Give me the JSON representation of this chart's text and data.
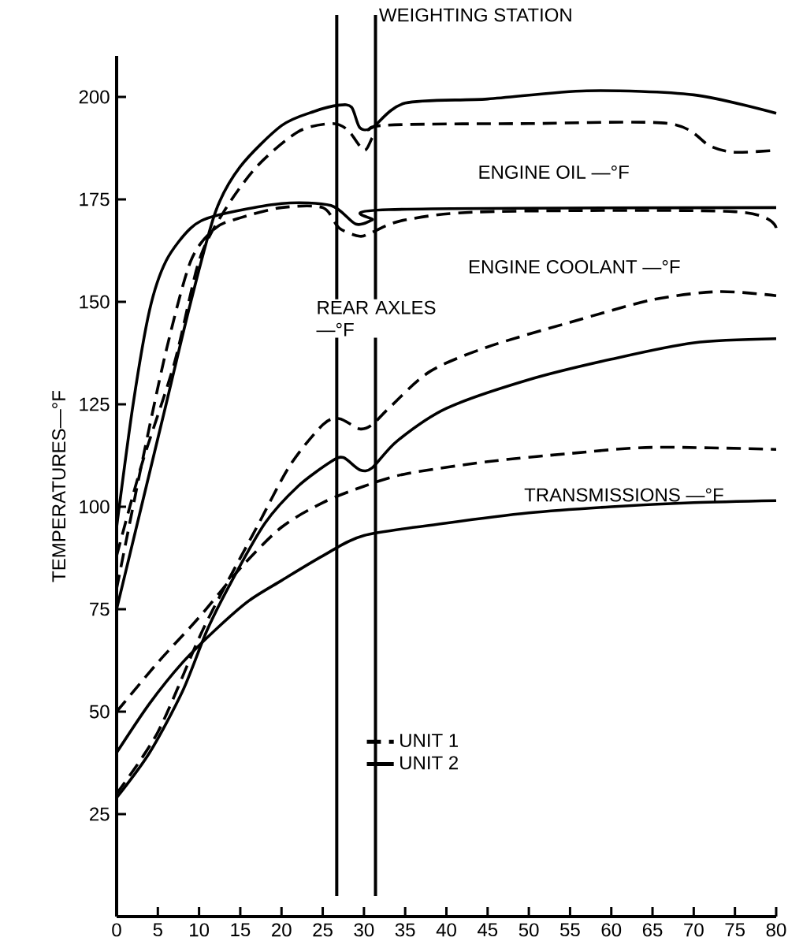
{
  "chart_data": {
    "type": "line",
    "ylabel": "TEMPERATURES—°F",
    "xlim": [
      0,
      80
    ],
    "ylim": [
      0,
      210
    ],
    "xticks": [
      0,
      5,
      10,
      15,
      20,
      25,
      30,
      35,
      40,
      45,
      50,
      55,
      60,
      65,
      70,
      75,
      80
    ],
    "yticks": [
      25,
      50,
      75,
      100,
      125,
      150,
      175,
      200
    ],
    "grid": false,
    "legend": "bottom",
    "series": [
      {
        "name": "UNIT 1",
        "color": "#000000",
        "line_style": "dashed",
        "x": [
          0,
          3,
          7,
          10,
          13,
          17,
          22,
          26,
          28,
          30,
          31,
          32,
          50,
          67,
          72,
          75,
          80
        ],
        "values": [
          88,
          110,
          135,
          160,
          172,
          183,
          191.5,
          193.5,
          192,
          187,
          190,
          193,
          193.5,
          193.5,
          188,
          186.5,
          187
        ]
      },
      {
        "name": "UNIT 2",
        "color": "#000000",
        "line_style": "solid",
        "x": [
          0,
          3,
          6,
          9,
          12,
          15,
          20,
          24,
          27,
          28.5,
          29.5,
          31,
          35,
          45,
          57,
          70,
          80
        ],
        "values": [
          75,
          100,
          125,
          150,
          172,
          183,
          193,
          196.5,
          198,
          197.5,
          192.5,
          192.5,
          198.5,
          199.5,
          201.5,
          200.5,
          196
        ]
      },
      {
        "color": "#000000",
        "line_style": "dashed",
        "x": [
          0,
          3,
          6,
          9,
          12,
          15,
          20,
          25,
          27,
          29.5,
          31,
          35,
          45,
          75,
          80
        ],
        "values": [
          80,
          110,
          138,
          160,
          168,
          170.5,
          173,
          173,
          168,
          166,
          167,
          170,
          172,
          172,
          168
        ]
      },
      {
        "color": "#000000",
        "line_style": "solid",
        "x": [
          0,
          2,
          4,
          6,
          9,
          12,
          20,
          26,
          29,
          31,
          33,
          80
        ],
        "values": [
          95,
          125,
          148,
          160,
          168,
          171,
          174,
          173.5,
          169,
          170,
          172.5,
          173
        ]
      },
      {
        "color": "#000000",
        "line_style": "dashed",
        "x": [
          0,
          5,
          10,
          13,
          17,
          21,
          25,
          27,
          29.5,
          31,
          33,
          38,
          45,
          55,
          65,
          73,
          80
        ],
        "values": [
          30,
          45,
          68,
          80,
          95,
          110,
          120,
          121.5,
          119,
          120,
          124,
          133,
          139,
          145,
          150.5,
          152.5,
          151.5
        ]
      },
      {
        "color": "#000000",
        "line_style": "solid",
        "x": [
          0,
          4,
          8,
          11,
          14,
          18,
          22,
          26,
          27.5,
          29.5,
          31,
          34,
          40,
          50,
          60,
          70,
          80
        ],
        "values": [
          29,
          40,
          55,
          70,
          82,
          96,
          105,
          111,
          112,
          109,
          109.5,
          116,
          124,
          131,
          136,
          140,
          141
        ]
      },
      {
        "color": "#000000",
        "line_style": "dashed",
        "x": [
          0,
          5,
          10,
          15,
          20,
          25,
          30,
          35,
          45,
          55,
          65,
          80
        ],
        "values": [
          50,
          62,
          73,
          85,
          95,
          101,
          105,
          108,
          111,
          113,
          114.5,
          114
        ]
      },
      {
        "color": "#000000",
        "line_style": "solid",
        "x": [
          0,
          4,
          8,
          12,
          16,
          20,
          25,
          30,
          40,
          50,
          60,
          70,
          80
        ],
        "values": [
          40,
          52,
          62,
          70,
          77,
          82,
          88,
          93,
          96,
          98.5,
          100,
          101,
          101.5
        ]
      }
    ],
    "ref_lines": [
      {
        "axis": "x",
        "value": 26.7
      },
      {
        "axis": "x",
        "value": 31.4,
        "label": "WEIGHTING STATION"
      }
    ],
    "annotations": [
      "ENGINE OIL —°F",
      "ENGINE COOLANT —°F",
      "REAR AXLES —°F",
      "TRANSMISSIONS —°F"
    ]
  }
}
